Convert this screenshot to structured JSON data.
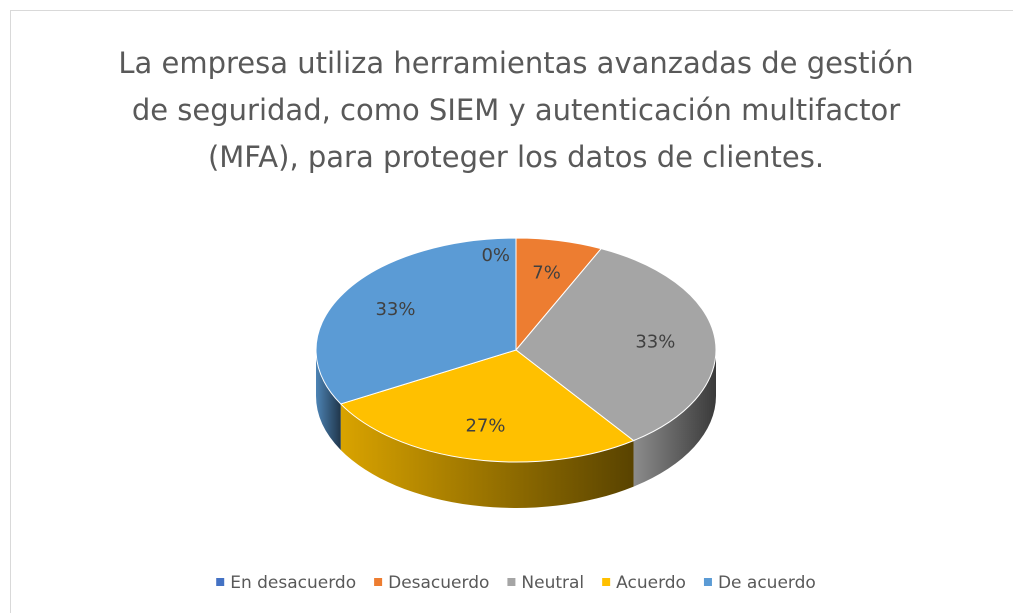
{
  "chart_data": {
    "type": "pie",
    "title": "La empresa utiliza herramientas avanzadas de gestión de seguridad, como SIEM y autenticación multifactor (MFA), para proteger los datos de clientes.",
    "categories": [
      "En desacuerdo",
      "Desacuerdo",
      "Neutral",
      "Acuerdo",
      "De acuerdo"
    ],
    "values": [
      0,
      7,
      33,
      27,
      33
    ],
    "value_labels": [
      "0%",
      "7%",
      "33%",
      "27%",
      "33%"
    ],
    "colors": [
      "#4472c4",
      "#ed7d31",
      "#a5a5a5",
      "#ffc000",
      "#5b9bd5"
    ],
    "legend": "bottom"
  }
}
